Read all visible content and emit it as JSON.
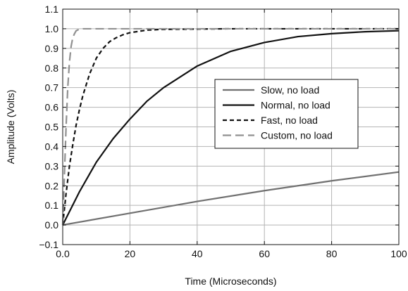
{
  "chart_data": {
    "type": "line",
    "title": "",
    "xlabel": "Time (Microseconds)",
    "ylabel": "Amplitude (Volts)",
    "xlim": [
      0,
      100
    ],
    "ylim": [
      -0.1,
      1.1
    ],
    "xticks": [
      0,
      20,
      40,
      60,
      80,
      100
    ],
    "xtick_labels": [
      "0.0",
      "20",
      "40",
      "60",
      "80",
      "100"
    ],
    "yticks": [
      -0.1,
      0.0,
      0.1,
      0.2,
      0.3,
      0.4,
      0.5,
      0.6,
      0.7,
      0.8,
      0.9,
      1.0,
      1.1
    ],
    "ytick_labels": [
      "−0.1",
      "0.0",
      "0.1",
      "0.2",
      "0.3",
      "0.4",
      "0.5",
      "0.6",
      "0.7",
      "0.8",
      "0.9",
      "1.0",
      "1.1"
    ],
    "grid": true,
    "legend_position": "right",
    "series": [
      {
        "name": "Slow, no load",
        "color": "#707070",
        "dash": "solid",
        "x": [
          0,
          20,
          40,
          60,
          80,
          100
        ],
        "y": [
          0.0,
          0.06,
          0.12,
          0.175,
          0.225,
          0.27
        ]
      },
      {
        "name": "Normal, no load",
        "color": "#111111",
        "dash": "solid",
        "x": [
          0,
          5,
          10,
          15,
          20,
          25,
          30,
          40,
          50,
          60,
          70,
          80,
          90,
          100
        ],
        "y": [
          0.0,
          0.17,
          0.32,
          0.44,
          0.54,
          0.63,
          0.7,
          0.81,
          0.885,
          0.93,
          0.96,
          0.975,
          0.985,
          0.99
        ]
      },
      {
        "name": "Fast, no load",
        "color": "#111111",
        "dash": "dash",
        "x": [
          0,
          1,
          2,
          3,
          4,
          5,
          6,
          8,
          10,
          12,
          14,
          16,
          18,
          20,
          25,
          30,
          50,
          100
        ],
        "y": [
          0.0,
          0.16,
          0.3,
          0.41,
          0.51,
          0.59,
          0.66,
          0.77,
          0.85,
          0.9,
          0.935,
          0.955,
          0.97,
          0.98,
          0.993,
          0.997,
          1.0,
          1.0
        ]
      },
      {
        "name": "Custom, no load",
        "color": "#909090",
        "dash": "longdash",
        "x": [
          0,
          0.5,
          1,
          1.5,
          2,
          2.5,
          3,
          3.5,
          4,
          5,
          6,
          8,
          100
        ],
        "y": [
          0.0,
          0.25,
          0.5,
          0.7,
          0.83,
          0.91,
          0.955,
          0.975,
          0.99,
          0.998,
          1.0,
          1.0,
          1.0
        ]
      }
    ]
  }
}
